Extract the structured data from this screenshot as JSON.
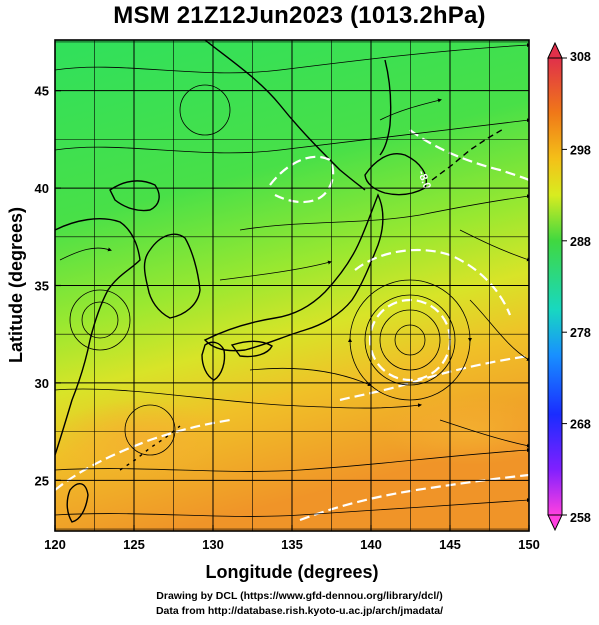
{
  "title": "MSM 21Z12Jun2023 (1013.2hPa)",
  "x_axis": {
    "label": "Longitude (degrees)",
    "ticks": [
      "120",
      "125",
      "130",
      "135",
      "140",
      "145",
      "150"
    ],
    "range": [
      120,
      150
    ]
  },
  "y_axis": {
    "label": "Latitude (degrees)",
    "ticks": [
      "25",
      "30",
      "35",
      "40",
      "45"
    ],
    "range": [
      22.4,
      47.6
    ]
  },
  "colorbar": {
    "ticks": [
      "308",
      "298",
      "288",
      "278",
      "268",
      "258"
    ],
    "range": [
      258,
      308
    ],
    "colors_top_to_bottom": [
      "#e0304a",
      "#f07818",
      "#f4c018",
      "#d8ec20",
      "#40d840",
      "#18d8c0",
      "#1890ff",
      "#1a2cff",
      "#8020ff",
      "#ff40e0"
    ]
  },
  "contour_label": "-8.0",
  "field_colors": {
    "north": "#30e060",
    "mid": "#8ce830",
    "south_warm": "#f0c028",
    "south_hot": "#f09028",
    "land_outline": "#000000",
    "contour": "#ffffff",
    "streamline": "#000000"
  },
  "credits": {
    "line1": "Drawing by DCL (https://www.gfd-dennou.org/library/dcl/)",
    "line2": "Data from http://database.rish.kyoto-u.ac.jp/arch/jmadata/"
  }
}
